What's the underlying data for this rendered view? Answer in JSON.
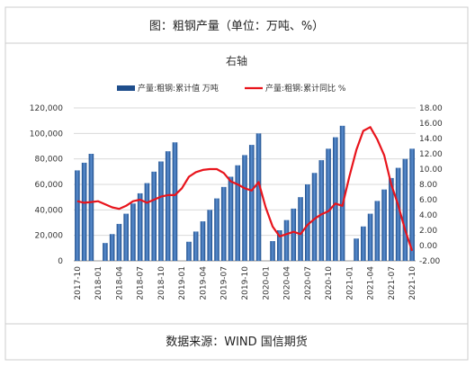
{
  "header": {
    "title": "图：粗钢产量（单位：万吨、%）"
  },
  "footer": {
    "text": "数据来源：WIND 国信期货"
  },
  "chart_data": {
    "type": "bar",
    "title": "右轴",
    "categories": [
      "2017-10",
      null,
      null,
      "2018-01",
      null,
      null,
      "2018-04",
      null,
      null,
      "2018-07",
      null,
      null,
      "2018-10",
      null,
      null,
      "2019-01",
      null,
      null,
      "2019-04",
      null,
      null,
      "2019-07",
      null,
      null,
      "2019-10",
      null,
      null,
      "2020-01",
      null,
      null,
      "2020-04",
      null,
      null,
      "2020-07",
      null,
      null,
      "2020-10",
      null,
      null,
      "2021-01",
      null,
      null,
      "2021-04",
      null,
      null,
      "2021-07",
      null,
      null,
      "2021-10"
    ],
    "series": [
      {
        "name": "产量:粗钢:累计值 万吨",
        "type": "bar",
        "color": "#1f4e8c",
        "values": [
          71000,
          77000,
          84000,
          null,
          14000,
          21000,
          29000,
          37000,
          45000,
          53000,
          61000,
          70000,
          78000,
          86000,
          93000,
          null,
          15000,
          23000,
          31000,
          40000,
          49000,
          58000,
          66000,
          75000,
          83000,
          91000,
          100000,
          null,
          15500,
          24000,
          32000,
          41000,
          50000,
          60000,
          69000,
          79000,
          88000,
          97000,
          106000,
          null,
          17500,
          27000,
          37000,
          47000,
          56000,
          65000,
          73000,
          80000,
          88000
        ]
      },
      {
        "name": "产量:粗钢:累计同比 %",
        "type": "line",
        "axis": "y2",
        "color": "#e8141c",
        "values": [
          5.8,
          5.6,
          5.7,
          5.8,
          5.4,
          5.0,
          4.8,
          5.2,
          5.8,
          6.0,
          5.6,
          6.0,
          6.4,
          6.6,
          6.6,
          7.5,
          9.0,
          9.6,
          9.9,
          10.0,
          10.0,
          9.5,
          8.4,
          8.0,
          7.5,
          7.2,
          8.3,
          5.0,
          2.5,
          1.2,
          1.5,
          1.8,
          1.5,
          2.7,
          3.5,
          4.1,
          4.5,
          5.5,
          5.2,
          9.0,
          12.5,
          15.0,
          15.5,
          13.9,
          11.8,
          8.0,
          5.3,
          2.0,
          -0.7
        ]
      }
    ],
    "ylim": [
      0,
      120000
    ],
    "yticks": [
      0,
      {
        "value": 20000,
        "label": "20,000"
      },
      {
        "value": 40000,
        "label": "40,000"
      },
      {
        "value": 60000,
        "label": "60,000"
      },
      {
        "value": 80000,
        "label": "80,000"
      },
      {
        "value": 100000,
        "label": "100,000"
      },
      {
        "value": 120000,
        "label": "120,000"
      }
    ],
    "y2lim": [
      -2,
      18
    ],
    "y2ticks": [
      {
        "value": -2,
        "label": "-2.00"
      },
      {
        "value": 0,
        "label": "0.00"
      },
      {
        "value": 2,
        "label": "2.00"
      },
      {
        "value": 4,
        "label": "4.00"
      },
      {
        "value": 6,
        "label": "6.00"
      },
      {
        "value": 8,
        "label": "8.00"
      },
      {
        "value": 10,
        "label": "10.00"
      },
      {
        "value": 12,
        "label": "12.00"
      },
      {
        "value": 14,
        "label": "14.00"
      },
      {
        "value": 16,
        "label": "16.00"
      },
      {
        "value": 18,
        "label": "18.00"
      }
    ],
    "grid": true
  }
}
